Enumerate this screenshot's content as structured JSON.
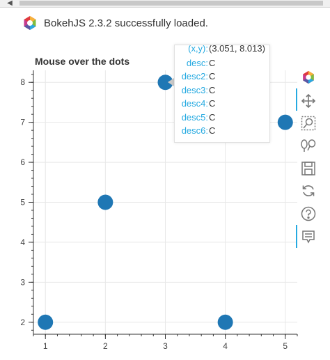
{
  "status": {
    "message": "BokehJS 2.3.2 successfully loaded."
  },
  "plot": {
    "title": "Mouse over the dots"
  },
  "chart_data": {
    "type": "scatter",
    "title": "Mouse over the dots",
    "x": [
      1,
      2,
      3,
      4,
      5
    ],
    "y": [
      2,
      5,
      8,
      2,
      7
    ],
    "xlim": [
      0.8,
      5.2
    ],
    "ylim": [
      1.7,
      8.3
    ],
    "xticks": [
      "1",
      "2",
      "3",
      "4",
      "5"
    ],
    "yticks": [
      "2",
      "3",
      "4",
      "5",
      "6",
      "7",
      "8"
    ],
    "grid": true,
    "marker_color": "#1f77b4"
  },
  "tooltip": {
    "rows": [
      {
        "key": "(x,y):",
        "value": "(3.051, 8.013)"
      },
      {
        "key": "desc:",
        "value": "C"
      },
      {
        "key": "desc2:",
        "value": "C"
      },
      {
        "key": "desc3:",
        "value": "C"
      },
      {
        "key": "desc4:",
        "value": "C"
      },
      {
        "key": "desc5:",
        "value": "C"
      },
      {
        "key": "desc6:",
        "value": "C"
      }
    ]
  },
  "toolbar": {
    "tools": [
      "bokeh-logo-icon",
      "pan-icon",
      "box-zoom-icon",
      "wheel-zoom-icon",
      "save-icon",
      "reset-icon",
      "help-icon",
      "hover-icon"
    ]
  },
  "colors": {
    "accent": "#26aae1",
    "marker": "#1f77b4"
  }
}
